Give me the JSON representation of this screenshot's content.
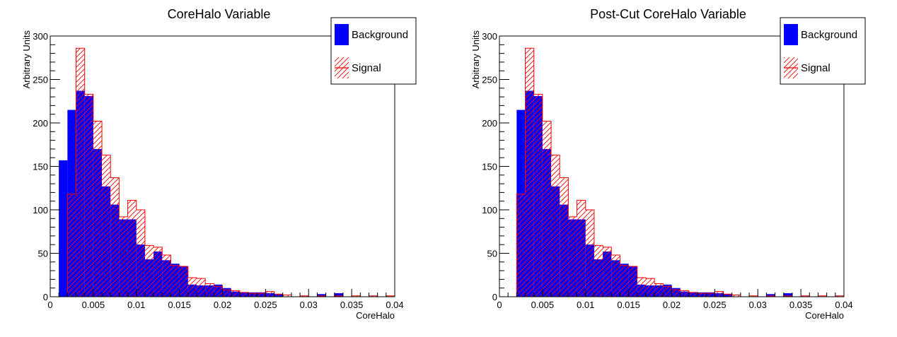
{
  "colors": {
    "background": "#0000ff",
    "signal": "#ff0000",
    "frame": "#000000"
  },
  "charts": [
    {
      "type": "bar",
      "title": "CoreHalo Variable",
      "xlabel": "CoreHalo",
      "ylabel": "Arbitrary Units",
      "xlim": [
        0,
        0.04
      ],
      "ylim": [
        0,
        300
      ],
      "x_ticks": [
        "0",
        "0.005",
        "0.01",
        "0.015",
        "0.02",
        "0.025",
        "0.03",
        "0.035",
        "0.04"
      ],
      "y_ticks": [
        "0",
        "50",
        "100",
        "150",
        "200",
        "250",
        "300"
      ],
      "legend": [
        {
          "name": "Background"
        },
        {
          "name": "Signal"
        }
      ],
      "bin_width": 0.001,
      "bin_start": 0,
      "background": [
        0,
        157,
        215,
        237,
        231,
        170,
        127,
        106,
        89,
        89,
        60,
        43,
        52,
        42,
        38,
        35,
        14,
        13,
        13,
        14,
        10,
        6,
        5,
        5,
        5,
        4,
        3,
        0,
        0,
        0,
        0,
        3,
        0,
        4,
        0,
        0,
        0,
        0,
        0,
        0
      ],
      "signal": [
        0,
        0,
        118,
        286,
        233,
        202,
        163,
        137,
        92,
        111,
        100,
        59,
        57,
        48,
        36,
        35,
        22,
        21,
        15,
        12,
        8,
        7,
        5,
        4,
        4,
        6,
        3,
        2,
        0,
        1,
        0,
        1,
        0,
        1,
        0,
        1,
        0,
        1,
        0,
        1
      ]
    },
    {
      "type": "bar",
      "title": "Post-Cut CoreHalo Variable",
      "xlabel": "CoreHalo",
      "ylabel": "Arbitrary Units",
      "xlim": [
        0,
        0.04
      ],
      "ylim": [
        0,
        300
      ],
      "x_ticks": [
        "0",
        "0.005",
        "0.01",
        "0.015",
        "0.02",
        "0.025",
        "0.03",
        "0.035",
        "0.04"
      ],
      "y_ticks": [
        "0",
        "50",
        "100",
        "150",
        "200",
        "250",
        "300"
      ],
      "legend": [
        {
          "name": "Background"
        },
        {
          "name": "Signal"
        }
      ],
      "bin_width": 0.001,
      "bin_start": 0,
      "background": [
        0,
        0,
        215,
        237,
        231,
        170,
        127,
        106,
        89,
        89,
        60,
        43,
        52,
        42,
        38,
        35,
        14,
        13,
        13,
        14,
        10,
        6,
        5,
        5,
        5,
        4,
        3,
        0,
        0,
        0,
        0,
        3,
        0,
        4,
        0,
        0,
        0,
        0,
        0,
        0
      ],
      "signal": [
        0,
        0,
        118,
        286,
        233,
        202,
        163,
        137,
        92,
        111,
        100,
        59,
        57,
        48,
        36,
        35,
        22,
        21,
        15,
        12,
        8,
        7,
        5,
        4,
        4,
        6,
        3,
        2,
        0,
        1,
        0,
        1,
        0,
        1,
        0,
        1,
        0,
        1,
        0,
        1
      ]
    }
  ]
}
